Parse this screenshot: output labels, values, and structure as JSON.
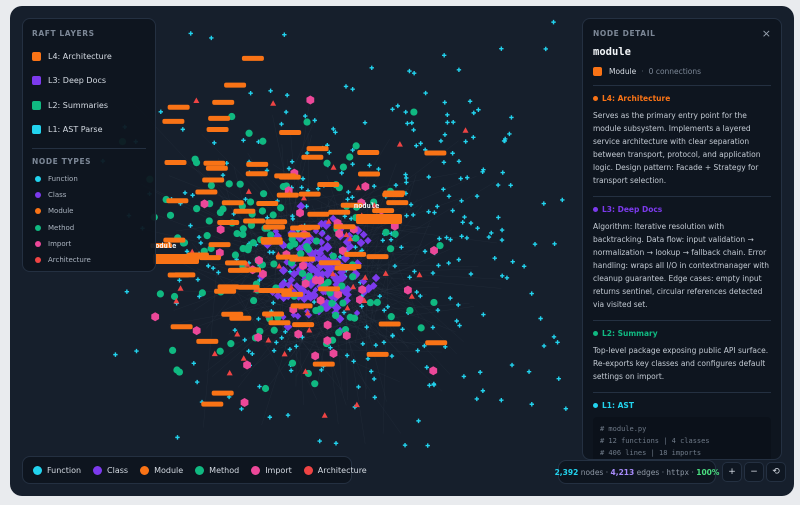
{
  "layers_panel": {
    "title": "RAFT LAYERS",
    "layers": [
      {
        "label": "L4: Architecture",
        "color": "#f97316"
      },
      {
        "label": "L3: Deep Docs",
        "color": "#7c3aed"
      },
      {
        "label": "L2: Summaries",
        "color": "#10b981"
      },
      {
        "label": "L1: AST Parse",
        "color": "#22d3ee"
      }
    ]
  },
  "node_types_panel": {
    "title": "NODE TYPES",
    "types": [
      {
        "label": "Function",
        "color": "#22d3ee"
      },
      {
        "label": "Class",
        "color": "#7c3aed"
      },
      {
        "label": "Module",
        "color": "#f97316"
      },
      {
        "label": "Method",
        "color": "#10b981"
      },
      {
        "label": "Import",
        "color": "#ec4899"
      },
      {
        "label": "Architecture",
        "color": "#ef4444"
      }
    ]
  },
  "legend": [
    {
      "label": "Function",
      "color": "#22d3ee"
    },
    {
      "label": "Class",
      "color": "#7c3aed"
    },
    {
      "label": "Module",
      "color": "#f97316"
    },
    {
      "label": "Method",
      "color": "#10b981"
    },
    {
      "label": "Import",
      "color": "#ec4899"
    },
    {
      "label": "Architecture",
      "color": "#ef4444"
    }
  ],
  "graph": {
    "labels": [
      "module",
      "module"
    ]
  },
  "stats": {
    "nodes": "2,392",
    "nodes_label": "nodes",
    "edges": "4,213",
    "edges_label": "edges",
    "project": "httpx",
    "zoom": "100%",
    "separator": "·"
  },
  "controls": [
    "+",
    "−",
    "⟲"
  ],
  "detail": {
    "title": "NODE DETAIL",
    "close": "×",
    "name": "module",
    "kind": "Module",
    "kind_color": "#f97316",
    "connections": "0 connections",
    "separator": "·",
    "sections": [
      {
        "heading": "L4: Architecture",
        "color": "#f97316",
        "text": "Serves as the primary entry point for the module subsystem. Implements a layered service architecture with clear separation between transport, protocol, and application logic. Design pattern: Facade + Strategy for transport selection."
      },
      {
        "heading": "L3: Deep Docs",
        "color": "#7c3aed",
        "text": "Algorithm: Iterative resolution with backtracking. Data flow: input validation → normalization → lookup → fallback chain. Error handling: wraps all I/O in contextmanager with cleanup guarantee. Edge cases: empty input returns sentinel, circular references detected via visited set."
      },
      {
        "heading": "L2: Summary",
        "color": "#10b981",
        "text": "Top-level package exposing public API surface. Re-exports key classes and configures default settings on import."
      },
      {
        "heading": "L1: AST",
        "color": "#22d3ee",
        "code": [
          "# module.py",
          "# 12 functions | 4 classes",
          "# 406 lines | 18 imports"
        ]
      }
    ]
  }
}
